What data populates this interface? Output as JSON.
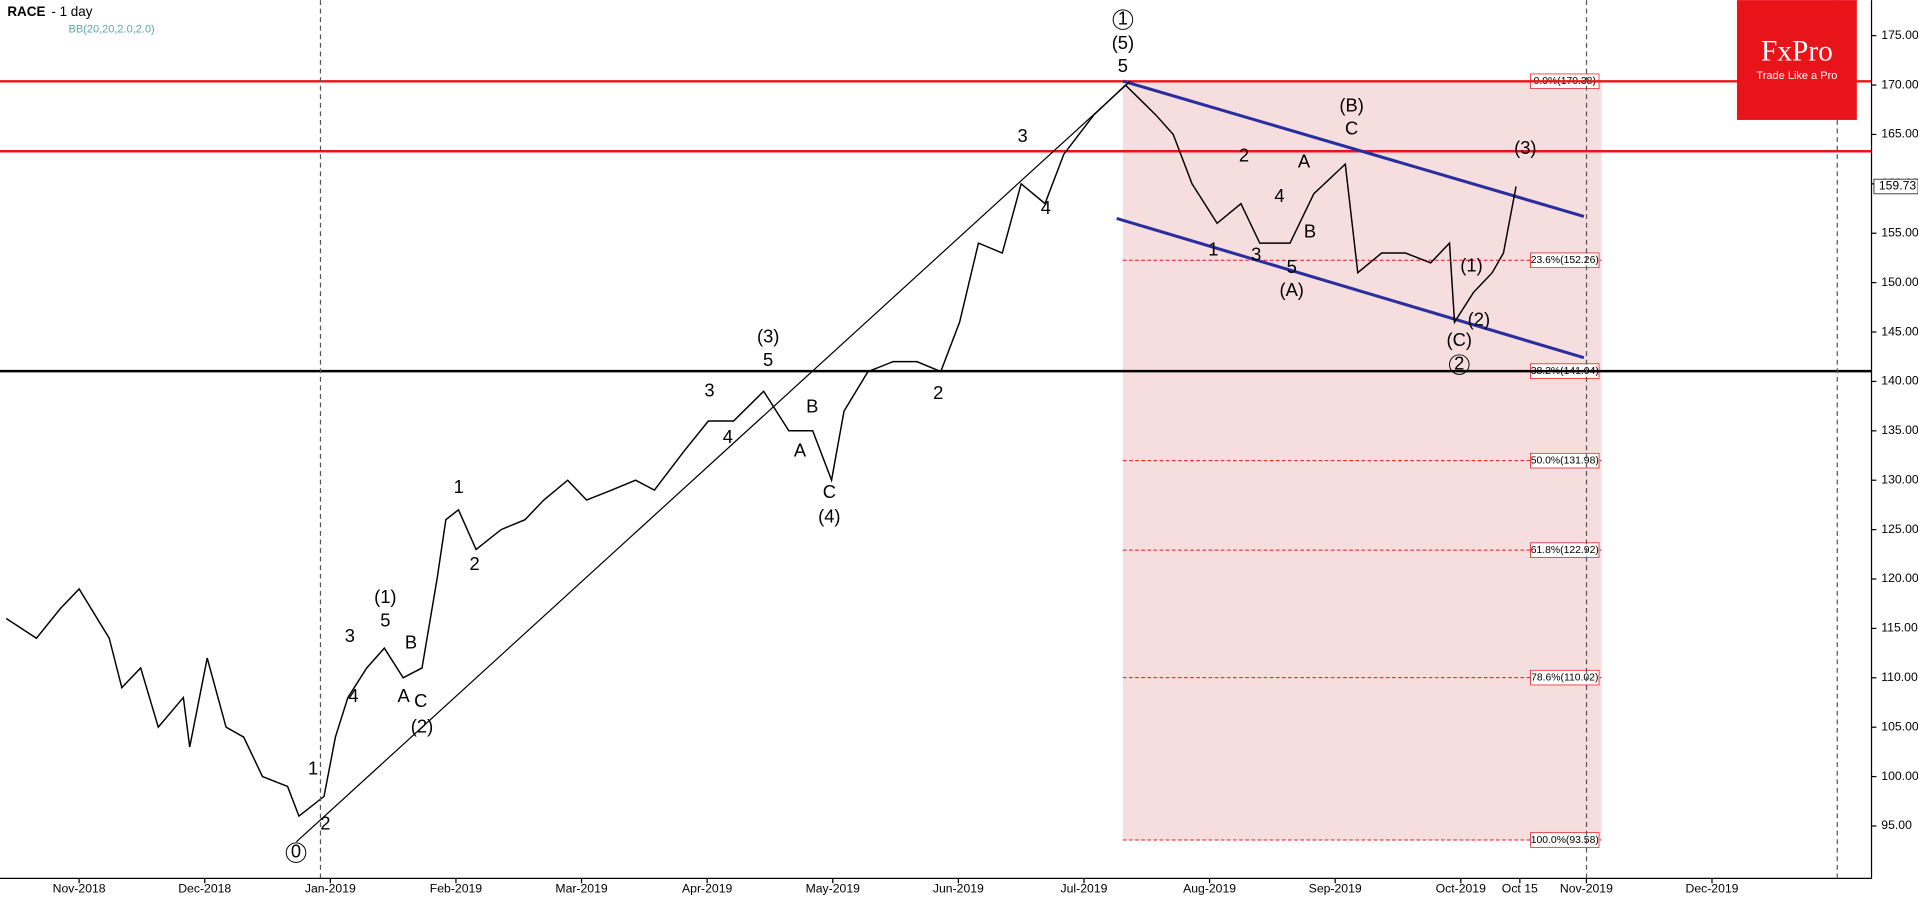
{
  "chart_data": {
    "type": "line",
    "title": "RACE",
    "subtitle": "- 1 day",
    "indicator": "BB(20,20,2.0,2.0)",
    "color": "#000000",
    "x": [
      -0.58,
      -0.34,
      -0.15,
      0,
      0.24,
      0.34,
      0.49,
      0.63,
      0.83,
      0.88,
      1.02,
      1.17,
      1.31,
      1.46,
      1.66,
      1.75,
      1.95,
      2.04,
      2.14,
      2.29,
      2.43,
      2.58,
      2.73,
      2.85,
      2.92,
      3.02,
      3.16,
      3.36,
      3.55,
      3.7,
      3.89,
      4.04,
      4.24,
      4.43,
      4.58,
      4.82,
      5.01,
      5.21,
      5.45,
      5.65,
      5.84,
      5.99,
      6.09,
      6.28,
      6.48,
      6.67,
      6.86,
      7.01,
      7.16,
      7.35,
      7.5,
      7.69,
      7.84,
      8.08,
      8.33,
      8.57,
      8.71,
      8.86,
      9.06,
      9.25,
      9.4,
      9.64,
      9.83,
      10.08,
      10.18,
      10.37,
      10.56,
      10.76,
      10.91,
      10.95,
      11.1,
      11.25,
      11.34,
      11.44
    ],
    "values": [
      116,
      114,
      117,
      119,
      114,
      109,
      111,
      105,
      108,
      103,
      112,
      105,
      104,
      100,
      99,
      96,
      98,
      104,
      108,
      111,
      113,
      110,
      111,
      120,
      126,
      127,
      123,
      125,
      126,
      128,
      130,
      128,
      129,
      130,
      129,
      133,
      136,
      136,
      139,
      135,
      135,
      130,
      137,
      141,
      142,
      142,
      141,
      146,
      154,
      153,
      160,
      158,
      163,
      167,
      170,
      167,
      165,
      160,
      156,
      158,
      154,
      154,
      159,
      162,
      151,
      153,
      153,
      152,
      154,
      146,
      149,
      151,
      153,
      159.73
    ],
    "last_price": 159.73,
    "xlim": [
      -0.63,
      14.27
    ],
    "ylim": [
      89.7,
      178.6
    ],
    "xticks": [
      {
        "value": 0,
        "label": "Nov-2018"
      },
      {
        "value": 1,
        "label": "Dec-2018"
      },
      {
        "value": 2,
        "label": "Jan-2019"
      },
      {
        "value": 3,
        "label": "Feb-2019"
      },
      {
        "value": 4,
        "label": "Mar-2019"
      },
      {
        "value": 5,
        "label": "Apr-2019"
      },
      {
        "value": 6,
        "label": "May-2019"
      },
      {
        "value": 7,
        "label": "Jun-2019"
      },
      {
        "value": 8,
        "label": "Jul-2019"
      },
      {
        "value": 9,
        "label": "Aug-2019"
      },
      {
        "value": 10,
        "label": "Sep-2019"
      },
      {
        "value": 11,
        "label": "Oct-2019"
      },
      {
        "value": 11.47,
        "label": "Oct 15"
      },
      {
        "value": 12,
        "label": "Nov-2019"
      },
      {
        "value": 13,
        "label": "Dec-2019"
      }
    ],
    "yticks": [
      {
        "value": 95,
        "label": "95.00"
      },
      {
        "value": 100,
        "label": "100.00"
      },
      {
        "value": 105,
        "label": "105.00"
      },
      {
        "value": 110,
        "label": "110.00"
      },
      {
        "value": 115,
        "label": "115.00"
      },
      {
        "value": 120,
        "label": "120.00"
      },
      {
        "value": 125,
        "label": "125.00"
      },
      {
        "value": 130,
        "label": "130.00"
      },
      {
        "value": 135,
        "label": "135.00"
      },
      {
        "value": 140,
        "label": "140.00"
      },
      {
        "value": 145,
        "label": "145.00"
      },
      {
        "value": 150,
        "label": "150.00"
      },
      {
        "value": 155,
        "label": "155.00"
      },
      {
        "value": 160,
        "label": "160.00"
      },
      {
        "value": 165,
        "label": "165.00"
      },
      {
        "value": 170,
        "label": "170.00"
      },
      {
        "value": 175,
        "label": "175.00"
      }
    ],
    "fib_zone": {
      "x": [
        8.31,
        12.12
      ],
      "color": "#f6dede"
    },
    "fib_levels": [
      {
        "value": 170.38,
        "label": "0.0%(170.38)"
      },
      {
        "value": 152.26,
        "label": "23.6%(152.26)"
      },
      {
        "value": 141.04,
        "label": "38.2%(141.04)"
      },
      {
        "value": 131.98,
        "label": "50.0%(131.98)"
      },
      {
        "value": 122.92,
        "label": "61.8%(122.92)"
      },
      {
        "value": 110.02,
        "label": "78.6%(110.02)"
      },
      {
        "value": 93.58,
        "label": "100.0%(93.58)"
      }
    ],
    "horizontal_lines": [
      {
        "value": 170.38,
        "color": "#e8141a"
      },
      {
        "value": 163.3,
        "color": "#e8141a"
      },
      {
        "value": 141.04,
        "color": "#000000"
      }
    ],
    "trend_lines": [
      {
        "x": [
          8.31,
          11.98
        ],
        "values": [
          170.4,
          156.7
        ],
        "color": "#2b2f9e"
      },
      {
        "x": [
          8.26,
          11.98
        ],
        "values": [
          156.5,
          142.4
        ],
        "color": "#2b2f9e"
      },
      {
        "x": [
          1.73,
          8.37
        ],
        "values": [
          93.4,
          170.4
        ],
        "color": "#000000"
      }
    ],
    "annotations": [
      "1",
      "(5)",
      "5",
      "3",
      "4",
      "(B)",
      "C",
      "2",
      "A",
      "4",
      "B",
      "1",
      "3",
      "5",
      "(A)",
      "(3)",
      "(1)",
      "(2)",
      "(C)",
      "2",
      "(3)",
      "5",
      "3",
      "4",
      "B",
      "A",
      "C",
      "(4)",
      "2",
      "1",
      "2",
      "(1)",
      "5",
      "3",
      "4",
      "B",
      "A",
      "C",
      "(2)",
      "1",
      "2",
      "0"
    ],
    "logo": {
      "brand": "FxPro",
      "tagline": "Trade Like a Pro"
    }
  }
}
